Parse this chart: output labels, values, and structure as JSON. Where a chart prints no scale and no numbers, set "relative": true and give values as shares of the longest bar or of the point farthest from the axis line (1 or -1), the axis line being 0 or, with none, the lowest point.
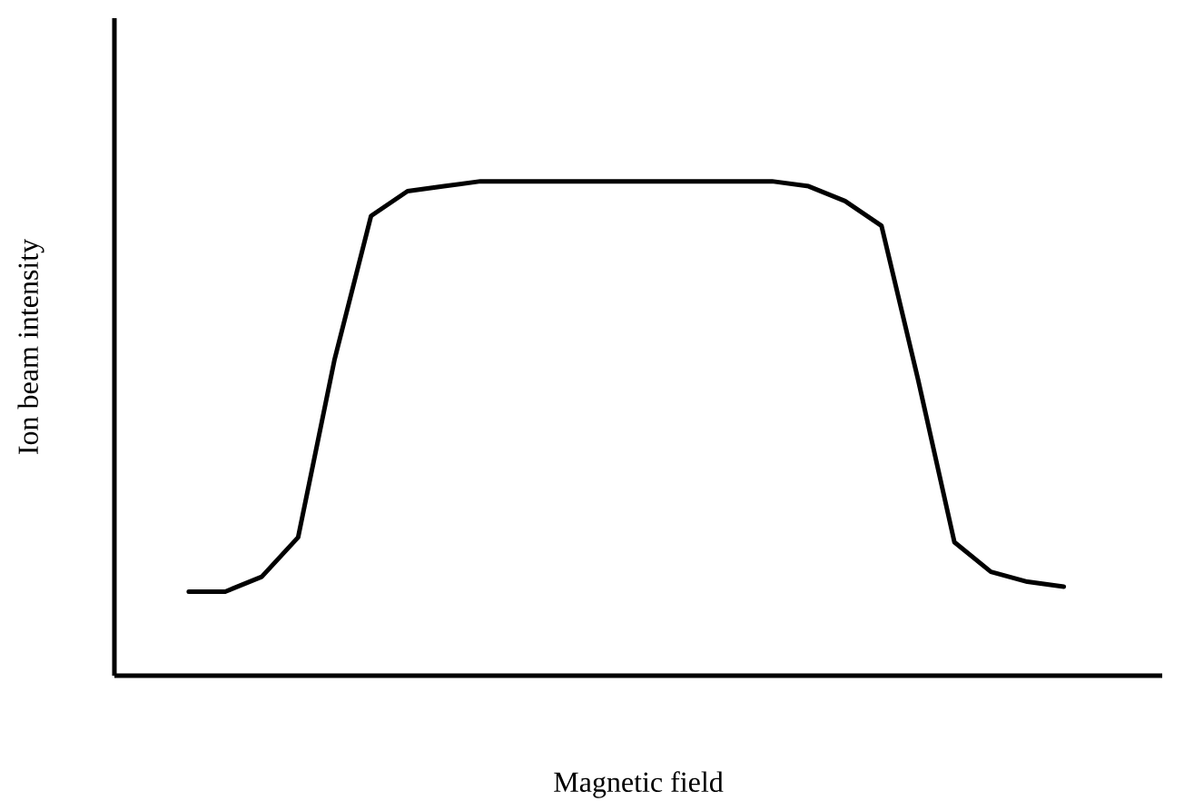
{
  "chart_data": {
    "type": "line",
    "xlabel": "Magnetic field",
    "ylabel": "Ion beam intensity",
    "relative": true,
    "color": "#000000",
    "categories": [
      null,
      null,
      null,
      null,
      null,
      null,
      null,
      null,
      null,
      null,
      null,
      null,
      null,
      null,
      null,
      null,
      null,
      null,
      null,
      null,
      null,
      null,
      null,
      null,
      null
    ],
    "values": [
      0.17,
      0.17,
      0.2,
      0.28,
      0.64,
      0.93,
      0.98,
      0.99,
      1.0,
      1.0,
      1.0,
      1.0,
      1.0,
      1.0,
      1.0,
      1.0,
      1.0,
      0.99,
      0.96,
      0.91,
      0.6,
      0.27,
      0.21,
      0.19,
      0.18
    ]
  }
}
